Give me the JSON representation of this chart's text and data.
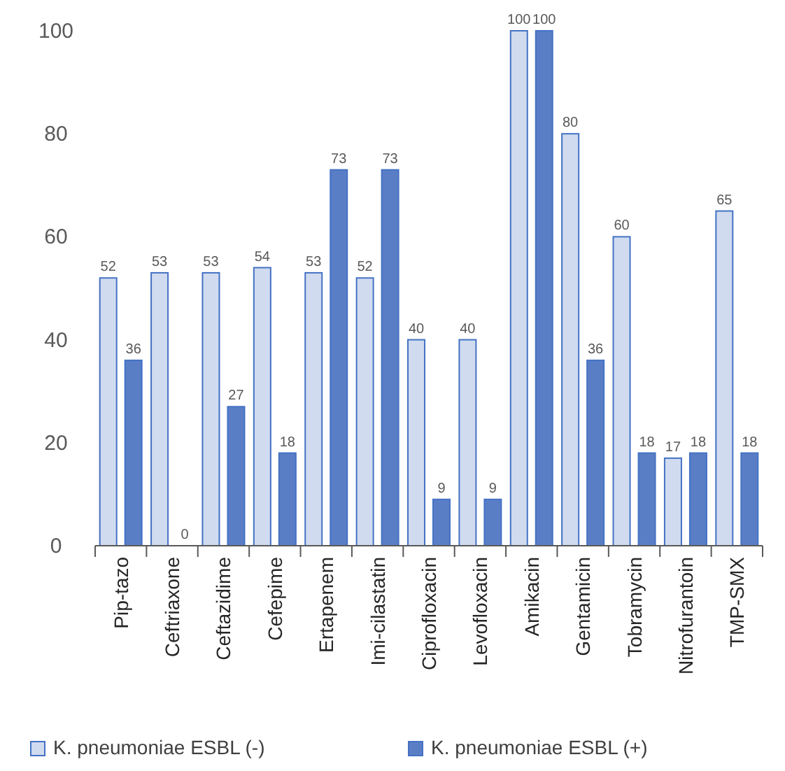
{
  "chart_data": {
    "type": "bar",
    "categories": [
      "Pip-tazo",
      "Ceftriaxone",
      "Ceftazidime",
      "Cefepime",
      "Ertapenem",
      "Imi-cilastatin",
      "Ciprofloxacin",
      "Levofloxacin",
      "Amikacin",
      "Gentamicin",
      "Tobramycin",
      "Nitrofurantoin",
      "TMP-SMX"
    ],
    "series": [
      {
        "name": "K. pneumoniae ESBL (-)",
        "color": "#d0dbf0",
        "values": [
          52,
          53,
          53,
          54,
          53,
          52,
          40,
          40,
          100,
          80,
          60,
          17,
          65
        ]
      },
      {
        "name": "K. pneumoniae ESBL (+)",
        "color": "#5a7ec6",
        "values": [
          36,
          0,
          27,
          18,
          73,
          73,
          9,
          9,
          100,
          36,
          18,
          18,
          18
        ]
      }
    ],
    "ylim": [
      0,
      100
    ],
    "yticks": [
      0,
      20,
      40,
      60,
      80,
      100
    ],
    "grid": false,
    "legend": "bottom",
    "data_labels": true
  }
}
